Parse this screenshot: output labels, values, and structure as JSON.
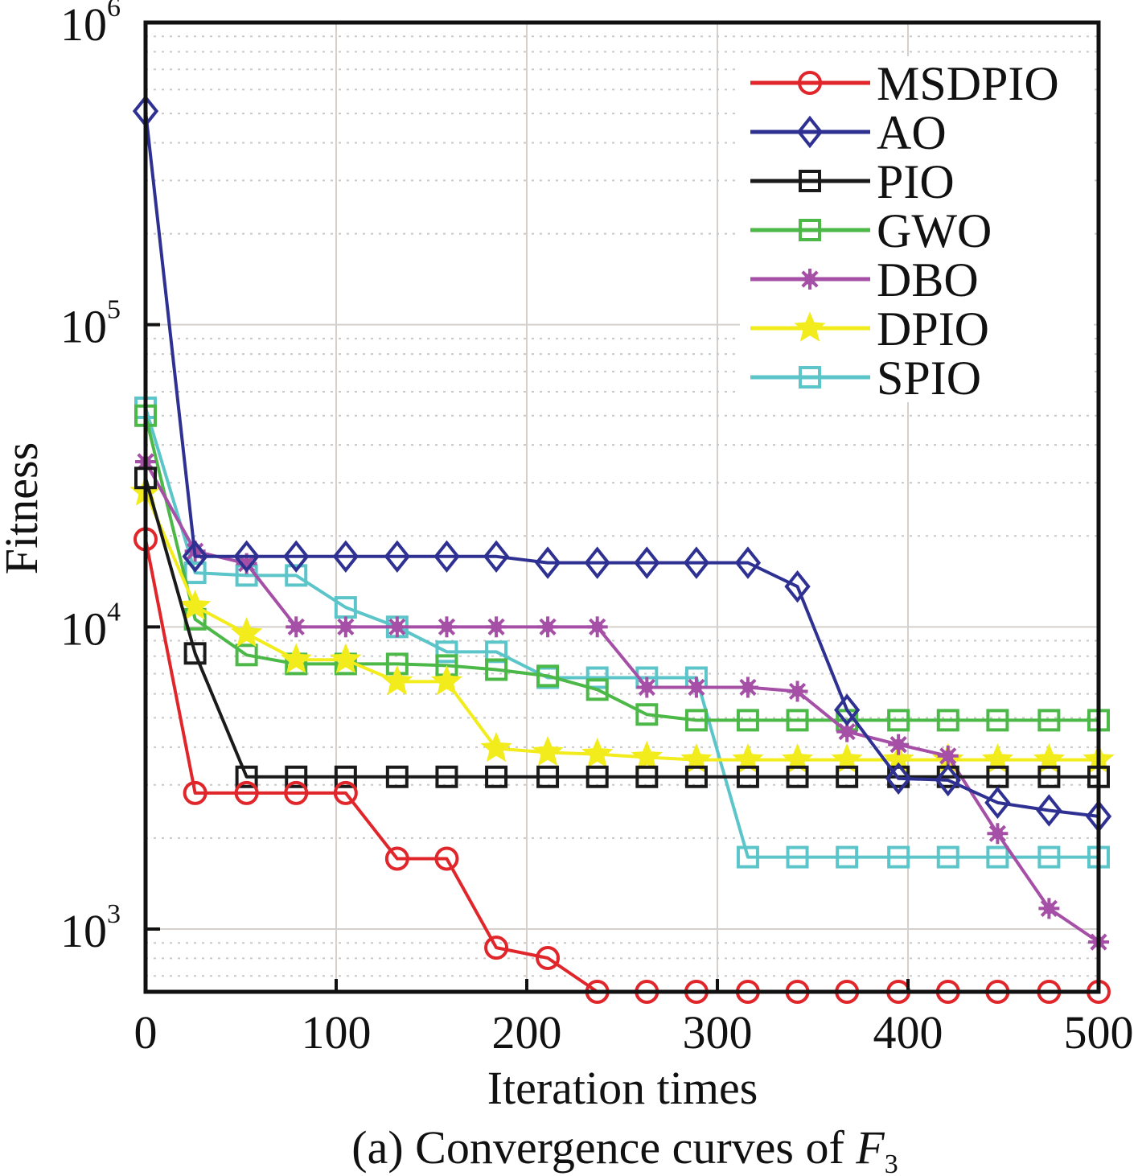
{
  "chart_data": {
    "type": "line",
    "title": "",
    "caption_prefix": "(a) Convergence curves of ",
    "caption_var": "F",
    "caption_sub": "3",
    "xlabel": "Iteration times",
    "ylabel": "Fitness",
    "yscale": "log",
    "xlim": [
      0,
      500
    ],
    "ylim": [
      620,
      1000000
    ],
    "xticks": [
      0,
      100,
      200,
      300,
      400,
      500
    ],
    "xtick_labels": [
      "0",
      "100",
      "200",
      "300",
      "400",
      "500"
    ],
    "yticks": [
      1000,
      10000,
      100000,
      1000000
    ],
    "ytick_labels": [
      {
        "base": "10",
        "exp": "3"
      },
      {
        "base": "10",
        "exp": "4"
      },
      {
        "base": "10",
        "exp": "5"
      },
      {
        "base": "10",
        "exp": "6"
      }
    ],
    "grid": true,
    "legend_position": "top-right",
    "x": [
      0,
      26,
      53,
      79,
      105,
      132,
      158,
      184,
      211,
      237,
      263,
      289,
      316,
      342,
      368,
      395,
      421,
      447,
      474,
      500
    ],
    "series": [
      {
        "name": "MSDPIO",
        "color": "#e0262a",
        "marker": "circle",
        "values": [
          19500,
          2820,
          2820,
          2820,
          2820,
          1710,
          1710,
          868,
          802,
          620,
          620,
          620,
          620,
          620,
          620,
          620,
          620,
          620,
          620,
          620
        ]
      },
      {
        "name": "AO",
        "color": "#2e3192",
        "marker": "diamond",
        "values": [
          509000,
          17100,
          17100,
          17100,
          17100,
          17100,
          17100,
          17100,
          16300,
          16300,
          16300,
          16300,
          16300,
          13600,
          5310,
          3150,
          3110,
          2620,
          2470,
          2360
        ]
      },
      {
        "name": "PIO",
        "color": "#1a1a1a",
        "marker": "square",
        "values": [
          31100,
          8170,
          3190,
          3190,
          3190,
          3190,
          3190,
          3190,
          3190,
          3190,
          3190,
          3190,
          3190,
          3190,
          3190,
          3190,
          3190,
          3190,
          3190,
          3190
        ]
      },
      {
        "name": "GWO",
        "color": "#4cb848",
        "marker": "square",
        "values": [
          50000,
          10600,
          8070,
          7540,
          7540,
          7540,
          7450,
          7220,
          6880,
          6200,
          5130,
          4910,
          4910,
          4910,
          4910,
          4910,
          4910,
          4910,
          4910,
          4910
        ]
      },
      {
        "name": "DBO",
        "color": "#a54fa6",
        "marker": "asterisk",
        "values": [
          35200,
          17800,
          16200,
          10000,
          10000,
          10000,
          10000,
          10000,
          10000,
          10000,
          6310,
          6310,
          6310,
          6120,
          4500,
          4080,
          3740,
          2070,
          1170,
          906
        ]
      },
      {
        "name": "DPIO",
        "color": "#f2ec1c",
        "marker": "star",
        "values": [
          27900,
          11700,
          9500,
          7780,
          7780,
          6590,
          6590,
          3960,
          3840,
          3790,
          3700,
          3630,
          3630,
          3630,
          3630,
          3630,
          3630,
          3630,
          3630,
          3630
        ]
      },
      {
        "name": "SPIO",
        "color": "#5bc5c9",
        "marker": "square",
        "values": [
          53100,
          15100,
          14800,
          14800,
          11600,
          10000,
          8270,
          8270,
          6790,
          6790,
          6790,
          6790,
          1730,
          1730,
          1730,
          1730,
          1730,
          1730,
          1730,
          1730
        ]
      }
    ]
  }
}
